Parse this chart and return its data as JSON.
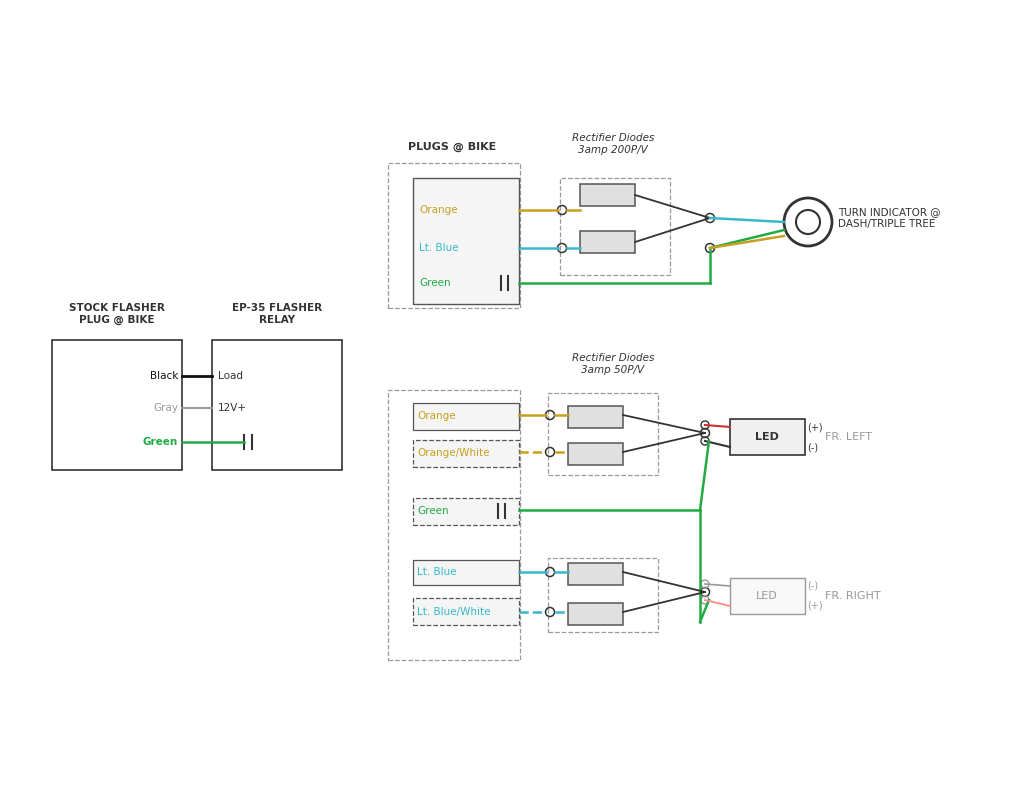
{
  "bg_color": "#ffffff",
  "colors": {
    "orange": "#C8A020",
    "lt_blue": "#38B8CC",
    "green": "#22AA44",
    "black": "#111111",
    "gray": "#999999",
    "red": "#CC3333",
    "pink": "#FF8888",
    "dark": "#333333",
    "box_fill": "#f5f5f5",
    "box_edge": "#555555",
    "diode_fill": "#e0e0e0",
    "diode_edge": "#555555",
    "dashed_box": "#999999"
  },
  "labels": {
    "plugs_bike": "PLUGS @ BIKE",
    "rect_diodes_top": "Rectifier Diodes\n3amp 200P/V",
    "rect_diodes_bot": "Rectifier Diodes\n3amp 50P/V",
    "turn_indicator": "TURN INDICATOR @\nDASH/TRIPLE TREE",
    "fr_left": "FR. LEFT",
    "fr_right": "FR. RIGHT",
    "led": "LED",
    "stock_flasher": "STOCK FLASHER\nPLUG @ BIKE",
    "ep35_flasher": "EP-35 FLASHER\nRELAY",
    "orange": "Orange",
    "lt_blue": "Lt. Blue",
    "green": "Green",
    "orange_white": "Orange/White",
    "lt_blue_white": "Lt. Blue/White",
    "black": "Black",
    "gray": "Gray",
    "load": "Load",
    "12v": "12V+",
    "plus": "(+)",
    "minus": "(-)"
  }
}
